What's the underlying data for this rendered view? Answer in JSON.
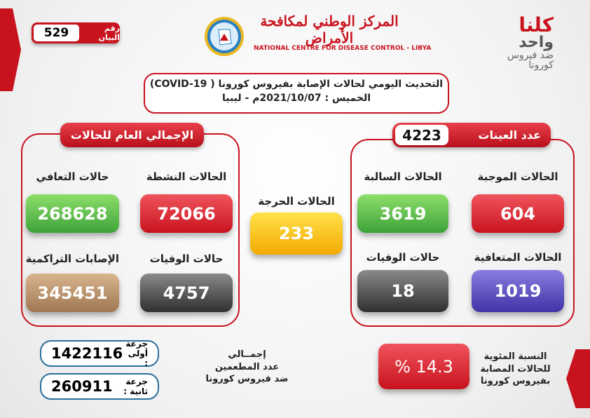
{
  "statement": {
    "label": "رقم البيان",
    "number": "529"
  },
  "org": {
    "name_ar": "المركز الوطني لمكافحة الأمراض",
    "name_en": "NATIONAL CENTRE FOR DISEASE CONTROL - LIBYA"
  },
  "slogan": {
    "line1": "كلنا",
    "line2": "واحد",
    "line3": "ضد فيروس",
    "line4": "كورونا"
  },
  "title": {
    "line1": "التحديث اليومي لحالات الإصابة بفيروس كورونا ( COVID-19)",
    "line2": "الخميس : 2021/10/07م - ليبيا"
  },
  "totals": {
    "header": "الإجمالي العام للحالات",
    "active": {
      "label": "الحالات النشطة",
      "value": "72066"
    },
    "recovered": {
      "label": "حالات التعافي",
      "value": "268628"
    },
    "deaths": {
      "label": "حالات الوفيات",
      "value": "4757"
    },
    "cumulative": {
      "label": "الإصابات التراكمية",
      "value": "345451"
    }
  },
  "critical": {
    "label": "الحالات الحرجة",
    "value": "233"
  },
  "samples": {
    "header": "عدد العينات",
    "value": "4223",
    "positive": {
      "label": "الحالات الموجبة",
      "value": "604"
    },
    "negative": {
      "label": "الحالات السالبة",
      "value": "3619"
    },
    "recovered": {
      "label": "الحالات المتعافية",
      "value": "1019"
    },
    "deaths": {
      "label": "حالات الوفيات",
      "value": "18"
    }
  },
  "vaccination": {
    "dose1_label": "جرعة أولى :",
    "dose1_value": "1422116",
    "dose2_label": "جرعة ثانية :",
    "dose2_value": "260911",
    "caption1": "إجمــالي",
    "caption2": "عدد المطعمين",
    "caption3": "ضد فيروس كورونا"
  },
  "positivity": {
    "value": "% 14.3",
    "caption1": "النسبة المئوية",
    "caption2": "للحالات المصابة",
    "caption3": "بفيروس كورونا"
  },
  "colors": {
    "accent": "#c8131e",
    "blue": "#2b6f9c"
  }
}
